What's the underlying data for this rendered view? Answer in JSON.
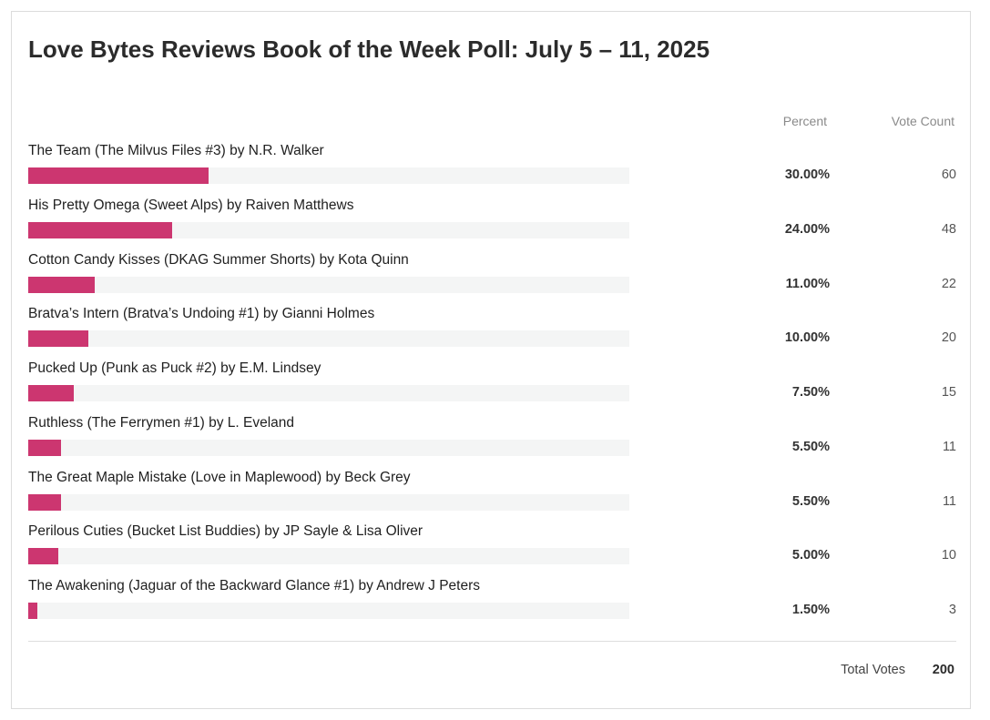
{
  "poll": {
    "title": "Love Bytes Reviews Book of the Week Poll: July 5 – 11, 2025",
    "columns": {
      "percent": "Percent",
      "vote_count": "Vote Count"
    },
    "bar_color": "#cc3670",
    "track_color": "#f4f5f5",
    "options": [
      {
        "label": "The Team (The Milvus Files #3) by N.R. Walker",
        "percent": "30.00%",
        "value": 30.0,
        "votes": "60"
      },
      {
        "label": "His Pretty Omega (Sweet Alps) by Raiven Matthews",
        "percent": "24.00%",
        "value": 24.0,
        "votes": "48"
      },
      {
        "label": "Cotton Candy Kisses (DKAG Summer Shorts) by Kota Quinn",
        "percent": "11.00%",
        "value": 11.0,
        "votes": "22"
      },
      {
        "label": "Bratva’s Intern (Bratva’s Undoing #1) by Gianni Holmes",
        "percent": "10.00%",
        "value": 10.0,
        "votes": "20"
      },
      {
        "label": "Pucked Up (Punk as Puck #2) by E.M. Lindsey",
        "percent": "7.50%",
        "value": 7.5,
        "votes": "15"
      },
      {
        "label": "Ruthless (The Ferrymen #1) by L. Eveland",
        "percent": "5.50%",
        "value": 5.5,
        "votes": "11"
      },
      {
        "label": "The Great Maple Mistake (Love in Maplewood) by Beck Grey",
        "percent": "5.50%",
        "value": 5.5,
        "votes": "11"
      },
      {
        "label": "Perilous Cuties (Bucket List Buddies) by JP Sayle & Lisa Oliver",
        "percent": "5.00%",
        "value": 5.0,
        "votes": "10"
      },
      {
        "label": "The Awakening (Jaguar of the Backward Glance #1) by Andrew J Peters",
        "percent": "1.50%",
        "value": 1.5,
        "votes": "3"
      }
    ],
    "total": {
      "label": "Total Votes",
      "value": "200"
    }
  }
}
